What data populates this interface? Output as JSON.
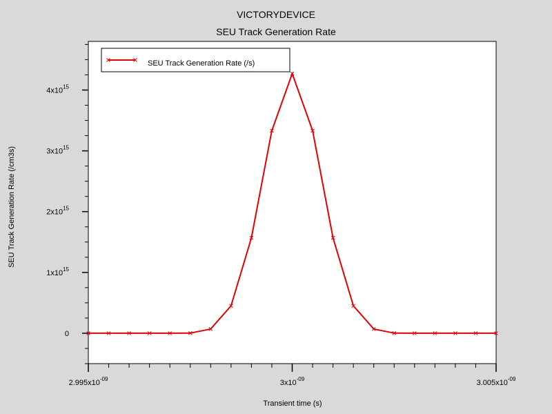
{
  "chart_data": {
    "type": "line",
    "title": "VICTORYDEVICE",
    "subtitle": "SEU Track Generation Rate",
    "xlabel": "Transient time (s)",
    "ylabel": "SEU Track Generation Rate (/cm3s)",
    "xlim": [
      2.995e-09,
      3.005e-09
    ],
    "ylim": [
      -500000000000000.0,
      4800000000000000.0
    ],
    "grid": false,
    "legend_position": "top-left",
    "x_ticks": [
      {
        "value": 2.995e-09,
        "mantissa": "2.995",
        "exp": "-09"
      },
      {
        "value": 3e-09,
        "mantissa": "3",
        "exp": "-09"
      },
      {
        "value": 3.005e-09,
        "mantissa": "3.005",
        "exp": "-09"
      }
    ],
    "y_ticks": [
      {
        "value": 0,
        "mantissa": "0",
        "exp": ""
      },
      {
        "value": 1000000000000000.0,
        "mantissa": "1",
        "exp": "15"
      },
      {
        "value": 2000000000000000.0,
        "mantissa": "2",
        "exp": "15"
      },
      {
        "value": 3000000000000000.0,
        "mantissa": "3",
        "exp": "15"
      },
      {
        "value": 4000000000000000.0,
        "mantissa": "4",
        "exp": "15"
      }
    ],
    "series": [
      {
        "name": "SEU Track Generation Rate (/s)",
        "color": "#e00000",
        "marker": "x",
        "x": [
          2.995e-09,
          2.9955e-09,
          2.996e-09,
          2.9965e-09,
          2.997e-09,
          2.9975e-09,
          2.998e-09,
          2.9985e-09,
          2.999e-09,
          2.9995e-09,
          3e-09,
          3.0005e-09,
          3.001e-09,
          3.0015e-09,
          3.002e-09,
          3.0025e-09,
          3.003e-09,
          3.0035e-09,
          3.004e-09,
          3.0045e-09,
          3.005e-09
        ],
        "y": [
          0,
          0,
          0,
          0,
          0,
          2000000000000.0,
          70000000000000.0,
          450000000000000.0,
          1570000000000000.0,
          3330000000000000.0,
          4270000000000000.0,
          3330000000000000.0,
          1570000000000000.0,
          450000000000000.0,
          70000000000000.0,
          2000000000000.0,
          0,
          0,
          0,
          0,
          0
        ]
      }
    ]
  }
}
